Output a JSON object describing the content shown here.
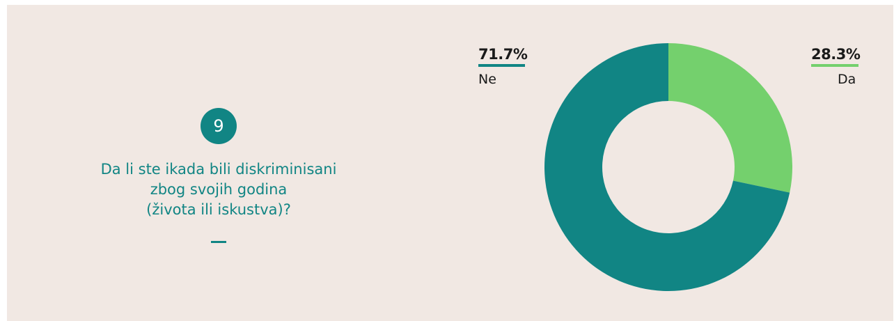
{
  "question": {
    "number": "9",
    "text": "Da li ste ikada bili diskriminisani\nzbog svojih godina\n(života ili iskustva)?"
  },
  "colors": {
    "background": "#f1e8e3",
    "primary": "#118584",
    "accent": "#74d06d"
  },
  "chart_data": {
    "type": "pie",
    "donut": true,
    "slices": [
      {
        "label": "Da",
        "value": 28.3,
        "display": "28.3%",
        "color": "#74d06d"
      },
      {
        "label": "Ne",
        "value": 71.7,
        "display": "71.7%",
        "color": "#118584"
      }
    ]
  }
}
